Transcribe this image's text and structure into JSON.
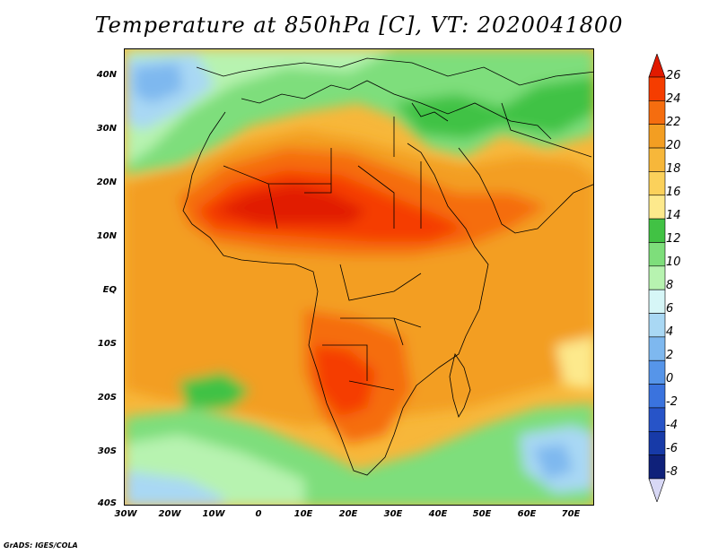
{
  "title": "Temperature at 850hPa [C], VT: 2020041800",
  "credit": "GrADS: IGES/COLA",
  "map": {
    "type": "filled-contour",
    "variable": "Temperature at 850hPa",
    "units": "C",
    "valid_time": "2020041800",
    "lon_range": [
      -30,
      75
    ],
    "lat_range": [
      -40,
      45
    ],
    "y_ticks": [
      "40N",
      "30N",
      "20N",
      "10N",
      "EQ",
      "10S",
      "20S",
      "30S",
      "40S"
    ],
    "x_ticks": [
      "30W",
      "20W",
      "10W",
      "0",
      "10E",
      "20E",
      "30E",
      "40E",
      "50E",
      "60E",
      "70E"
    ]
  },
  "colorbar": {
    "levels": [
      "26",
      "24",
      "22",
      "20",
      "18",
      "16",
      "14",
      "12",
      "10",
      "8",
      "6",
      "4",
      "2",
      "0",
      "-2",
      "-4",
      "-6",
      "-8"
    ],
    "colors": [
      "#e11a00",
      "#f53d00",
      "#f56d0f",
      "#f39e22",
      "#f7b73a",
      "#fbd15b",
      "#fde98c",
      "#41c244",
      "#7ede7b",
      "#b7f3b0",
      "#d6f6f7",
      "#a9d8f4",
      "#7eb8ef",
      "#5695e9",
      "#3a73de",
      "#2754c8",
      "#173aa8",
      "#0f217a",
      "#d8d8f5"
    ]
  }
}
